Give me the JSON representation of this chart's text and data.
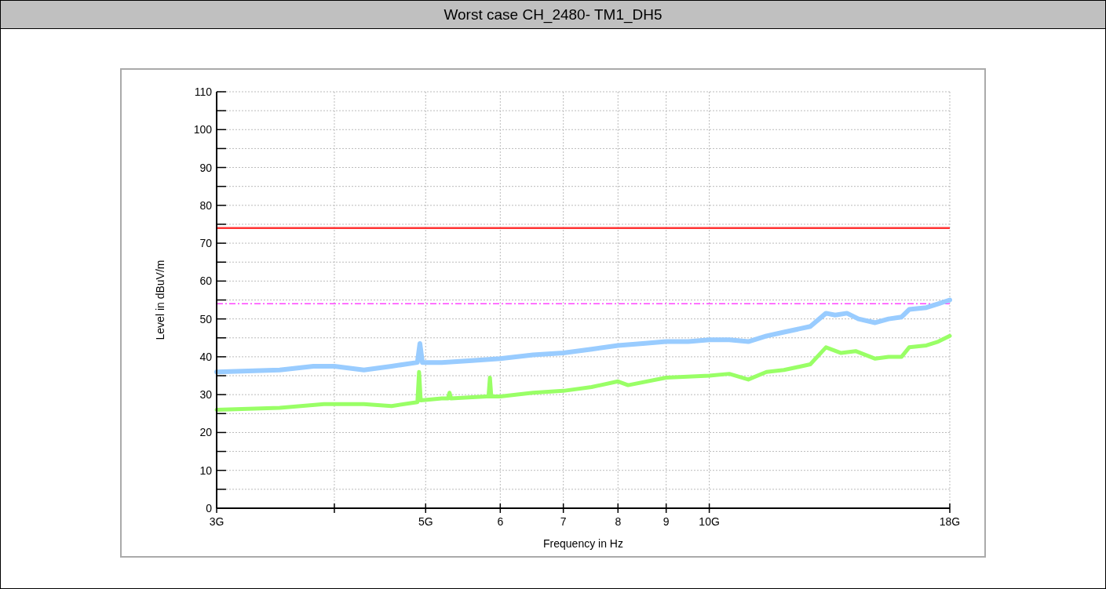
{
  "chart_data": {
    "type": "line",
    "title": "Worst case CH_2480- TM1_DH5",
    "xlabel": "Frequency in Hz",
    "ylabel": "Level in dBuV/m",
    "log": "x",
    "grid": true,
    "xlim": [
      3,
      18
    ],
    "ylim": [
      0,
      110
    ],
    "xticks": [
      {
        "value": 3,
        "label": "3G"
      },
      {
        "value": 4,
        "label": null
      },
      {
        "value": 5,
        "label": "5G"
      },
      6,
      7,
      8,
      9,
      {
        "value": 10,
        "label": "10G"
      },
      {
        "value": 18,
        "label": "18G"
      }
    ],
    "yticks": [
      0,
      {
        "value": 5,
        "label": null
      },
      10,
      {
        "value": 15,
        "label": null
      },
      20,
      {
        "value": 25,
        "label": null
      },
      30,
      {
        "value": 35,
        "label": null
      },
      40,
      {
        "value": 45,
        "label": null
      },
      50,
      {
        "value": 55,
        "label": null
      },
      60,
      {
        "value": 65,
        "label": null
      },
      70,
      {
        "value": 75,
        "label": null
      },
      80,
      {
        "value": 85,
        "label": null
      },
      90,
      {
        "value": 95,
        "label": null
      },
      100,
      {
        "value": 105,
        "label": null
      },
      110
    ],
    "ref_lines": [
      {
        "axis": "y",
        "value": 74,
        "color": "#ff3333",
        "line_style": "solid"
      },
      {
        "axis": "y",
        "value": 54,
        "color": "#ff44ff",
        "line_style": "dashed"
      }
    ],
    "series": [
      {
        "color": "#99ccff",
        "x": [
          3,
          3.5,
          3.8,
          4,
          4.3,
          4.6,
          4.9,
          4.93,
          4.96,
          5.2,
          5.6,
          6,
          6.5,
          7,
          7.5,
          8,
          8.5,
          9,
          9.5,
          10,
          10.5,
          11,
          11.5,
          12,
          12.8,
          13.3,
          13.6,
          14,
          14.4,
          15,
          15.5,
          16,
          16.3,
          17,
          17.5,
          18
        ],
        "values": [
          36,
          36.5,
          37.5,
          37.5,
          36.5,
          37.5,
          38.5,
          43.5,
          38.5,
          38.5,
          39,
          39.5,
          40.5,
          41,
          42,
          43,
          43.5,
          44,
          44,
          44.5,
          44.5,
          44,
          45.5,
          46.5,
          48,
          51.5,
          51,
          51.5,
          50,
          49,
          50,
          50.5,
          52.5,
          53,
          54,
          55
        ]
      },
      {
        "color": "#99ff66",
        "x": [
          3,
          3.5,
          3.9,
          4.3,
          4.6,
          4.9,
          4.92,
          4.94,
          5.2,
          5.28,
          5.3,
          5.32,
          5.8,
          5.83,
          5.85,
          5.87,
          6,
          6.5,
          7,
          7.5,
          8,
          8.2,
          9,
          10,
          10.5,
          11,
          11.5,
          12,
          12.8,
          13.3,
          13.8,
          14.3,
          15,
          15.5,
          16,
          16.3,
          17,
          17.5,
          18
        ],
        "values": [
          26,
          26.5,
          27.5,
          27.5,
          27,
          28,
          36,
          28.5,
          29,
          29,
          30.5,
          29,
          29.5,
          29.5,
          34.5,
          29.5,
          29.5,
          30.5,
          31,
          32,
          33.5,
          32.5,
          34.5,
          35,
          35.5,
          34,
          36,
          36.5,
          38,
          42.5,
          41,
          41.5,
          39.5,
          40,
          40,
          42.5,
          43,
          44,
          45.5
        ]
      }
    ]
  }
}
